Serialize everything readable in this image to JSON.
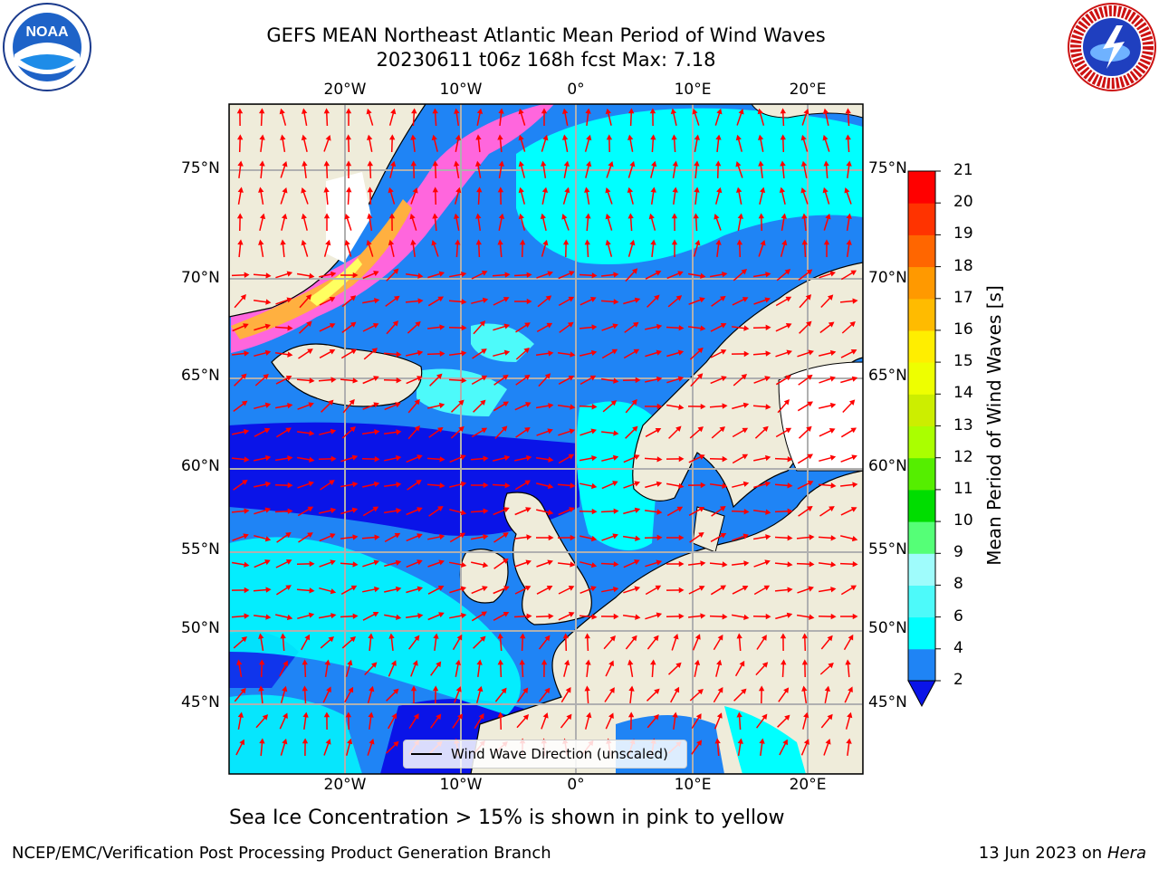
{
  "header": {
    "title_line1": "GEFS MEAN Northeast Atlantic Mean Period of Wind Waves",
    "title_line2": "20230611 t06z 168h fcst   Max: 7.18"
  },
  "logos": {
    "left": "NOAA",
    "left_ring_text": "NATIONAL OCEANIC AND ATMOSPHERIC ADMINISTRATION · U.S. DEPARTMENT OF COMMERCE",
    "right_ring_text": "NATIONAL WEATHER SERVICE"
  },
  "map": {
    "lat_labels": [
      "75°N",
      "70°N",
      "65°N",
      "60°N",
      "55°N",
      "50°N",
      "45°N"
    ],
    "lon_labels": [
      "20°W",
      "10°W",
      "0°",
      "10°E",
      "20°E"
    ],
    "legend_label": "Wind Wave Direction (unscaled)",
    "colors": {
      "land": "#efecda",
      "ocean_low": "#1f84f5",
      "ocean_lowest": "#0a14e8",
      "ocean_mid": "#00ffff",
      "ocean_light": "#4dfafa",
      "ice_pink": "#ff66dd",
      "ice_orange": "#ffb040",
      "ice_yellow": "#ffff60",
      "arrow": "#ff0000",
      "grid": "#b0b0b0"
    }
  },
  "colorbar": {
    "label": "Mean Period of Wind Waves [s]",
    "ticks": [
      "2",
      "4",
      "6",
      "8",
      "9",
      "10",
      "11",
      "12",
      "13",
      "14",
      "15",
      "16",
      "17",
      "18",
      "19",
      "20",
      "21"
    ],
    "colors": [
      "#0a14e8",
      "#1f84f5",
      "#00ffff",
      "#4dfafa",
      "#9ffcfc",
      "#55ff77",
      "#00dd00",
      "#55ee00",
      "#aaff00",
      "#ccee00",
      "#eeff00",
      "#ffee00",
      "#ffbb00",
      "#ff9900",
      "#ff6600",
      "#ff3300",
      "#ff0000"
    ]
  },
  "footer": {
    "note": "Sea Ice Concentration > 15% is shown in pink to yellow",
    "credit": "NCEP/EMC/Verification Post Processing Product Generation Branch",
    "date": "13 Jun 2023 on",
    "host": "Hera"
  }
}
